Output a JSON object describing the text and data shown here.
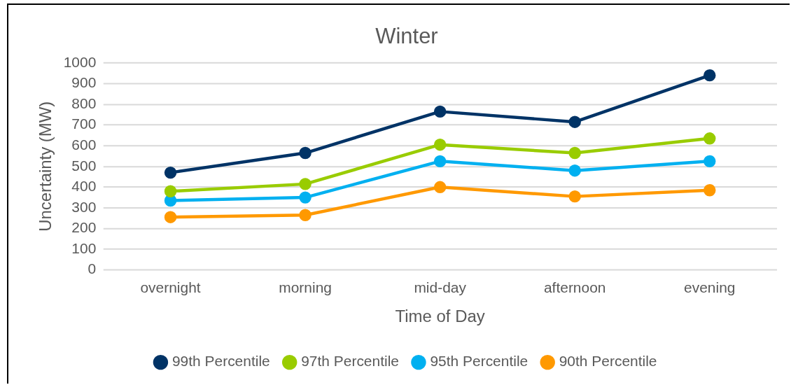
{
  "chart_data": {
    "type": "line",
    "title": "Winter",
    "xlabel": "Time of Day",
    "ylabel": "Uncertainty (MW)",
    "categories": [
      "overnight",
      "morning",
      "mid-day",
      "afternoon",
      "evening"
    ],
    "series": [
      {
        "name": "99th Percentile",
        "color": "#003366",
        "values": [
          470,
          565,
          765,
          715,
          940
        ]
      },
      {
        "name": "97th Percentile",
        "color": "#99cc00",
        "values": [
          380,
          415,
          605,
          565,
          635
        ]
      },
      {
        "name": "95th Percentile",
        "color": "#00b0f0",
        "values": [
          335,
          350,
          525,
          480,
          525
        ]
      },
      {
        "name": "90th Percentile",
        "color": "#ff9900",
        "values": [
          255,
          265,
          400,
          355,
          385
        ]
      }
    ],
    "ylim": [
      0,
      1000
    ],
    "yticks": [
      0,
      100,
      200,
      300,
      400,
      500,
      600,
      700,
      800,
      900,
      1000
    ],
    "grid": "y",
    "legend": "bottom",
    "marker": "circle",
    "line_style": "solid"
  }
}
